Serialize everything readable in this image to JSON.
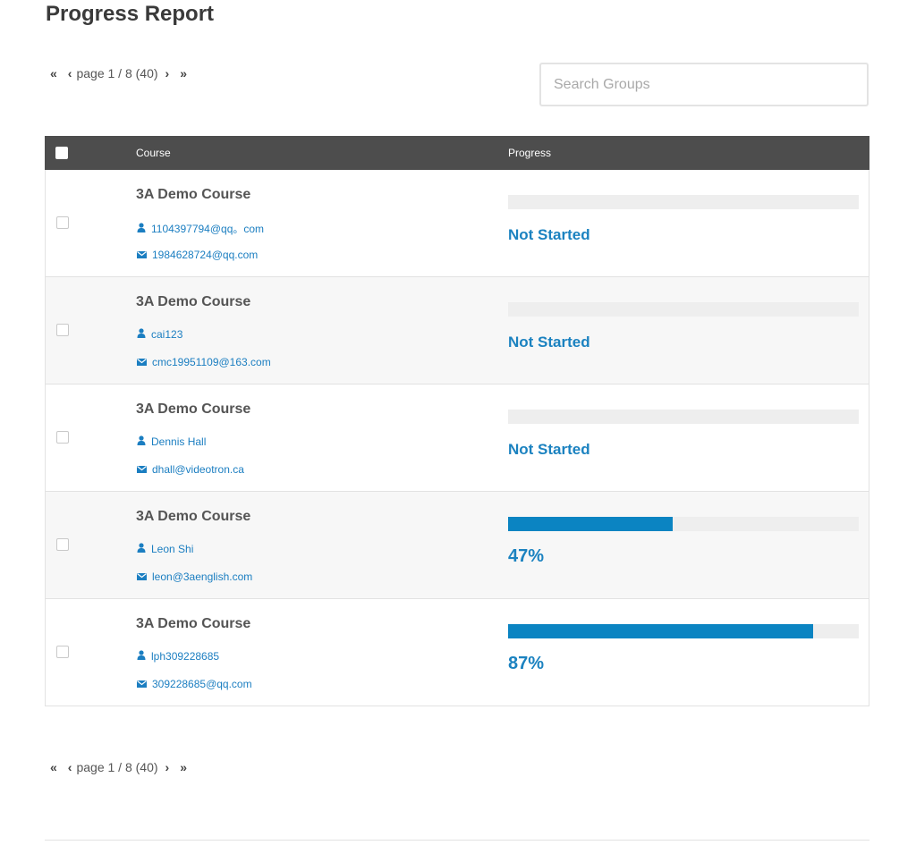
{
  "page": {
    "title": "Progress Report"
  },
  "pagination": {
    "first": "«",
    "prev": "‹",
    "label": "page 1 / 8 (40)",
    "next": "›",
    "last": "»"
  },
  "search": {
    "placeholder": "Search Groups",
    "value": ""
  },
  "table": {
    "columns": {
      "course": "Course",
      "progress": "Progress"
    },
    "rows": [
      {
        "course": "3A Demo Course",
        "user": "1104397794@qq。com",
        "email": "1984628724@qq.com",
        "status": "Not Started",
        "progress": 0
      },
      {
        "course": "3A Demo Course",
        "user": "cai123",
        "email": "cmc19951109@163.com",
        "status": "Not Started",
        "progress": 0
      },
      {
        "course": "3A Demo Course",
        "user": "Dennis Hall",
        "email": "dhall@videotron.ca",
        "status": "Not Started",
        "progress": 0
      },
      {
        "course": "3A Demo Course",
        "user": "Leon Shi",
        "email": "leon@3aenglish.com",
        "status": "47%",
        "progress": 0.47
      },
      {
        "course": "3A Demo Course",
        "user": "lph309228685",
        "email": "309228685@qq.com",
        "status": "87%",
        "progress": 0.87
      }
    ]
  },
  "icons": {
    "user": "user-icon",
    "email": "envelope-icon"
  },
  "colors": {
    "accent": "#1b82c0",
    "bar_fill": "#0b84c2",
    "bar_track": "#eeeeee",
    "header_bg": "#4d4d4d",
    "title": "#3a3a3a"
  }
}
